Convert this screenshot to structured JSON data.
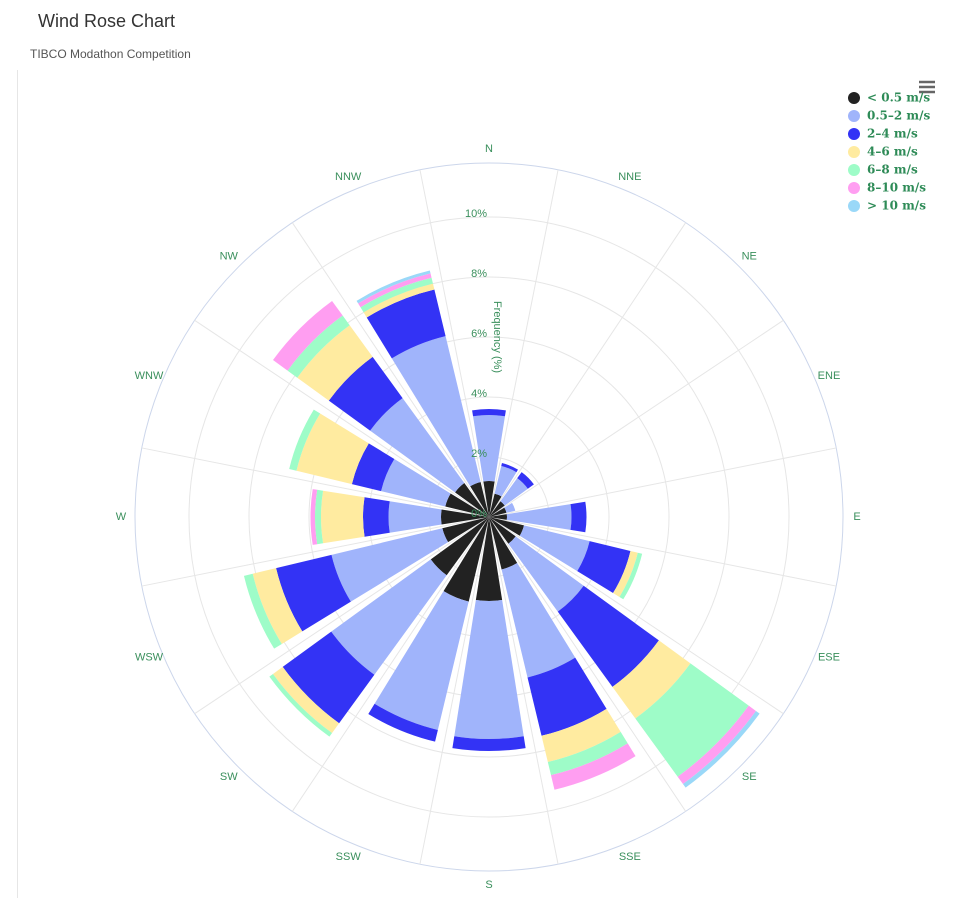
{
  "chart_data": {
    "type": "windrose",
    "title": "Wind Rose Chart",
    "subtitle": "TIBCO Modathon Competition",
    "y_axis_title": "Frequency (%)",
    "categories": [
      "N",
      "NNE",
      "NE",
      "ENE",
      "E",
      "ESE",
      "SE",
      "SSE",
      "S",
      "SSW",
      "SW",
      "WSW",
      "W",
      "WNW",
      "NW",
      "NNW"
    ],
    "ylim": [
      0,
      11.8
    ],
    "yticks": [
      {
        "value": 0,
        "label": "0%"
      },
      {
        "value": 2,
        "label": "2%"
      },
      {
        "value": 4,
        "label": "4%"
      },
      {
        "value": 6,
        "label": "6%"
      },
      {
        "value": 8,
        "label": "8%"
      },
      {
        "value": 10,
        "label": "10%"
      }
    ],
    "grid": true,
    "legend_position": "top-right",
    "series": [
      {
        "name": "< 0.5 m/s",
        "color": "#222222",
        "values": [
          1.2,
          0.8,
          0.65,
          0.6,
          0.6,
          1.2,
          1.1,
          1.8,
          2.8,
          2.9,
          2.4,
          1.6,
          1.6,
          1.5,
          1.4,
          1.2
        ]
      },
      {
        "name": "0.5–2 m/s",
        "color": "#a0b4fb",
        "values": [
          2.2,
          0.95,
          0.95,
          0.3,
          2.15,
          2.25,
          2.8,
          3.7,
          4.6,
          4.4,
          4.1,
          3.8,
          1.75,
          2.2,
          3.5,
          5.0
        ]
      },
      {
        "name": "2–4 m/s",
        "color": "#3333f5",
        "values": [
          0.2,
          0.1,
          0.25,
          0,
          0.5,
          1.4,
          3.1,
          2.0,
          0.4,
          0.4,
          2.0,
          1.9,
          0.85,
          1.0,
          1.7,
          1.6
        ]
      },
      {
        "name": "4–6 m/s",
        "color": "#ffeba0",
        "values": [
          0,
          0,
          0,
          0,
          0,
          0.25,
          1.3,
          0.9,
          0,
          0,
          0.4,
          0.8,
          1.4,
          1.9,
          1.3,
          0.2
        ]
      },
      {
        "name": "6–8 m/s",
        "color": "#9efcc8",
        "values": [
          0,
          0,
          0,
          0,
          0,
          0.15,
          2.4,
          0.45,
          0,
          0,
          0.15,
          0.3,
          0.2,
          0.25,
          0.4,
          0.2
        ]
      },
      {
        "name": "8–10 m/s",
        "color": "#ff9ef1",
        "values": [
          0,
          0,
          0,
          0,
          0,
          0,
          0.3,
          0.5,
          0,
          0,
          0,
          0,
          0.15,
          0,
          0.6,
          0.15
        ]
      },
      {
        "name": "> 10 m/s",
        "color": "#9ad8f8",
        "values": [
          0,
          0,
          0,
          0,
          0,
          0,
          0.15,
          0,
          0,
          0,
          0,
          0,
          0,
          0,
          0,
          0.1
        ]
      }
    ]
  }
}
